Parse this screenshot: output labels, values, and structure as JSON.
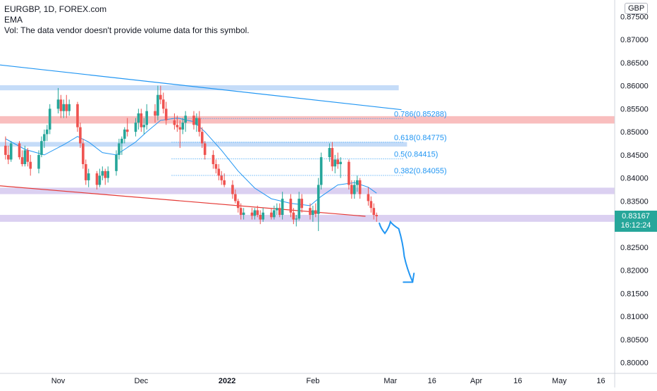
{
  "header": {
    "symbol_line": "EURGBP, 1D, FOREX.com",
    "ema_label": "EMA",
    "vol_label": "Vol: The data vendor doesn't provide volume data for this symbol."
  },
  "price_axis": {
    "currency": "GBP",
    "last_price": "0.83167",
    "countdown": "16:12:24",
    "last_price_value": 0.83167
  },
  "colors": {
    "up": "#26a69a",
    "down": "#ef5350",
    "ema": "#2196f3",
    "zone_blue": "#bbd6f7",
    "zone_red": "#f8b3b3",
    "zone_purple": "#d5c8ee",
    "fib": "#2196f3",
    "trend_blue": "#2196f3",
    "trend_red": "#e53935",
    "arrow": "#2196f3"
  },
  "chart_data": {
    "type": "candlestick",
    "ylim": [
      0.7975,
      0.8775
    ],
    "y_ticks": [
      "0.87500",
      "0.87000",
      "0.86500",
      "0.86000",
      "0.85500",
      "0.85000",
      "0.84500",
      "0.84000",
      "0.83500",
      "0.83000",
      "0.82500",
      "0.82000",
      "0.81500",
      "0.81000",
      "0.80500",
      "0.80000"
    ],
    "x_ticks": [
      {
        "label": "Nov",
        "date": "2021-11-01"
      },
      {
        "label": "Dec",
        "date": "2021-12-01"
      },
      {
        "label": "2022",
        "date": "2022-01-01"
      },
      {
        "label": "Feb",
        "date": "2022-02-01"
      },
      {
        "label": "Mar",
        "date": "2022-03-01"
      },
      {
        "label": "16",
        "date": "2022-03-16"
      },
      {
        "label": "Apr",
        "date": "2022-04-01"
      },
      {
        "label": "16",
        "date": "2022-04-16"
      },
      {
        "label": "May",
        "date": "2022-05-01"
      },
      {
        "label": "16",
        "date": "2022-05-16"
      }
    ],
    "x_range": [
      "2021-10-11",
      "2022-05-21"
    ],
    "candles": [
      {
        "date": "2021-10-13",
        "open": 0.847,
        "high": 0.849,
        "low": 0.844,
        "close": 0.845
      },
      {
        "date": "2021-10-14",
        "open": 0.845,
        "high": 0.847,
        "low": 0.843,
        "close": 0.844
      },
      {
        "date": "2021-10-15",
        "open": 0.844,
        "high": 0.848,
        "low": 0.8435,
        "close": 0.8475
      },
      {
        "date": "2021-10-18",
        "open": 0.8475,
        "high": 0.848,
        "low": 0.844,
        "close": 0.8445
      },
      {
        "date": "2021-10-19",
        "open": 0.8445,
        "high": 0.846,
        "low": 0.8425,
        "close": 0.843
      },
      {
        "date": "2021-10-20",
        "open": 0.843,
        "high": 0.847,
        "low": 0.8425,
        "close": 0.846
      },
      {
        "date": "2021-10-21",
        "open": 0.846,
        "high": 0.8465,
        "low": 0.8425,
        "close": 0.8435
      },
      {
        "date": "2021-10-22",
        "open": 0.8435,
        "high": 0.845,
        "low": 0.8405,
        "close": 0.842
      },
      {
        "date": "2021-10-25",
        "open": 0.842,
        "high": 0.846,
        "low": 0.841,
        "close": 0.845
      },
      {
        "date": "2021-10-26",
        "open": 0.845,
        "high": 0.849,
        "low": 0.8445,
        "close": 0.848
      },
      {
        "date": "2021-10-27",
        "open": 0.848,
        "high": 0.8505,
        "low": 0.8465,
        "close": 0.8495
      },
      {
        "date": "2021-10-28",
        "open": 0.8495,
        "high": 0.8515,
        "low": 0.848,
        "close": 0.8505
      },
      {
        "date": "2021-10-29",
        "open": 0.8505,
        "high": 0.856,
        "low": 0.8495,
        "close": 0.855
      },
      {
        "date": "2021-11-01",
        "open": 0.855,
        "high": 0.8595,
        "low": 0.854,
        "close": 0.857
      },
      {
        "date": "2021-11-02",
        "open": 0.857,
        "high": 0.858,
        "low": 0.853,
        "close": 0.8545
      },
      {
        "date": "2021-11-03",
        "open": 0.8545,
        "high": 0.857,
        "low": 0.853,
        "close": 0.856
      },
      {
        "date": "2021-11-04",
        "open": 0.856,
        "high": 0.858,
        "low": 0.853,
        "close": 0.8545
      },
      {
        "date": "2021-11-05",
        "open": 0.8545,
        "high": 0.857,
        "low": 0.8535,
        "close": 0.856
      },
      {
        "date": "2021-11-08",
        "open": 0.856,
        "high": 0.8565,
        "low": 0.85,
        "close": 0.851
      },
      {
        "date": "2021-11-09",
        "open": 0.851,
        "high": 0.852,
        "low": 0.8465,
        "close": 0.8475
      },
      {
        "date": "2021-11-10",
        "open": 0.8475,
        "high": 0.8485,
        "low": 0.842,
        "close": 0.843
      },
      {
        "date": "2021-11-11",
        "open": 0.843,
        "high": 0.844,
        "low": 0.8385,
        "close": 0.8395
      },
      {
        "date": "2021-11-12",
        "open": 0.8395,
        "high": 0.842,
        "low": 0.838,
        "close": 0.841
      },
      {
        "date": "2021-11-15",
        "open": 0.841,
        "high": 0.8415,
        "low": 0.8375,
        "close": 0.8385
      },
      {
        "date": "2021-11-16",
        "open": 0.8385,
        "high": 0.842,
        "low": 0.838,
        "close": 0.8405
      },
      {
        "date": "2021-11-17",
        "open": 0.8405,
        "high": 0.8425,
        "low": 0.8395,
        "close": 0.8415
      },
      {
        "date": "2021-11-18",
        "open": 0.8415,
        "high": 0.842,
        "low": 0.8385,
        "close": 0.84
      },
      {
        "date": "2021-11-19",
        "open": 0.84,
        "high": 0.8425,
        "low": 0.839,
        "close": 0.8415
      },
      {
        "date": "2021-11-22",
        "open": 0.8415,
        "high": 0.846,
        "low": 0.8405,
        "close": 0.845
      },
      {
        "date": "2021-11-23",
        "open": 0.845,
        "high": 0.8485,
        "low": 0.844,
        "close": 0.8475
      },
      {
        "date": "2021-11-24",
        "open": 0.8475,
        "high": 0.849,
        "low": 0.845,
        "close": 0.8485
      },
      {
        "date": "2021-11-25",
        "open": 0.8485,
        "high": 0.851,
        "low": 0.8475,
        "close": 0.8505
      },
      {
        "date": "2021-11-26",
        "open": 0.8505,
        "high": 0.853,
        "low": 0.849,
        "close": 0.85
      },
      {
        "date": "2021-11-29",
        "open": 0.85,
        "high": 0.853,
        "low": 0.849,
        "close": 0.852
      },
      {
        "date": "2021-11-30",
        "open": 0.852,
        "high": 0.855,
        "low": 0.8505,
        "close": 0.854
      },
      {
        "date": "2021-12-01",
        "open": 0.854,
        "high": 0.855,
        "low": 0.85,
        "close": 0.851
      },
      {
        "date": "2021-12-02",
        "open": 0.851,
        "high": 0.853,
        "low": 0.8495,
        "close": 0.8515
      },
      {
        "date": "2021-12-03",
        "open": 0.8515,
        "high": 0.856,
        "low": 0.8505,
        "close": 0.8545
      },
      {
        "date": "2021-12-06",
        "open": 0.8545,
        "high": 0.856,
        "low": 0.852,
        "close": 0.8535
      },
      {
        "date": "2021-12-07",
        "open": 0.8535,
        "high": 0.86,
        "low": 0.8525,
        "close": 0.858
      },
      {
        "date": "2021-12-08",
        "open": 0.858,
        "high": 0.86,
        "low": 0.856,
        "close": 0.857
      },
      {
        "date": "2021-12-09",
        "open": 0.857,
        "high": 0.8585,
        "low": 0.854,
        "close": 0.855
      },
      {
        "date": "2021-12-10",
        "open": 0.855,
        "high": 0.8565,
        "low": 0.8515,
        "close": 0.8525
      },
      {
        "date": "2021-12-13",
        "open": 0.8525,
        "high": 0.854,
        "low": 0.8505,
        "close": 0.8515
      },
      {
        "date": "2021-12-14",
        "open": 0.8515,
        "high": 0.8535,
        "low": 0.85,
        "close": 0.851
      },
      {
        "date": "2021-12-15",
        "open": 0.851,
        "high": 0.8525,
        "low": 0.8465,
        "close": 0.8505
      },
      {
        "date": "2021-12-16",
        "open": 0.8505,
        "high": 0.853,
        "low": 0.8495,
        "close": 0.852
      },
      {
        "date": "2021-12-17",
        "open": 0.852,
        "high": 0.8545,
        "low": 0.85,
        "close": 0.8535
      },
      {
        "date": "2021-12-20",
        "open": 0.8535,
        "high": 0.8545,
        "low": 0.8505,
        "close": 0.8515
      },
      {
        "date": "2021-12-21",
        "open": 0.8515,
        "high": 0.854,
        "low": 0.85,
        "close": 0.853
      },
      {
        "date": "2021-12-22",
        "open": 0.853,
        "high": 0.8545,
        "low": 0.849,
        "close": 0.85
      },
      {
        "date": "2021-12-23",
        "open": 0.85,
        "high": 0.851,
        "low": 0.8465,
        "close": 0.8475
      },
      {
        "date": "2021-12-24",
        "open": 0.8475,
        "high": 0.848,
        "low": 0.844,
        "close": 0.845
      },
      {
        "date": "2021-12-27",
        "open": 0.845,
        "high": 0.846,
        "low": 0.842,
        "close": 0.843
      },
      {
        "date": "2021-12-28",
        "open": 0.843,
        "high": 0.844,
        "low": 0.841,
        "close": 0.842
      },
      {
        "date": "2021-12-29",
        "open": 0.842,
        "high": 0.843,
        "low": 0.8395,
        "close": 0.8405
      },
      {
        "date": "2021-12-30",
        "open": 0.8405,
        "high": 0.8415,
        "low": 0.8385,
        "close": 0.8395
      },
      {
        "date": "2021-12-31",
        "open": 0.8395,
        "high": 0.841,
        "low": 0.838,
        "close": 0.8385
      },
      {
        "date": "2022-01-03",
        "open": 0.8385,
        "high": 0.8395,
        "low": 0.8355,
        "close": 0.8365
      },
      {
        "date": "2022-01-04",
        "open": 0.8365,
        "high": 0.8375,
        "low": 0.8345,
        "close": 0.835
      },
      {
        "date": "2022-01-05",
        "open": 0.835,
        "high": 0.8355,
        "low": 0.8325,
        "close": 0.8335
      },
      {
        "date": "2022-01-06",
        "open": 0.8335,
        "high": 0.8345,
        "low": 0.831,
        "close": 0.832
      },
      {
        "date": "2022-01-07",
        "open": 0.832,
        "high": 0.8335,
        "low": 0.831,
        "close": 0.8325
      },
      {
        "date": "2022-01-10",
        "open": 0.8325,
        "high": 0.8335,
        "low": 0.831,
        "close": 0.8318
      },
      {
        "date": "2022-01-11",
        "open": 0.8318,
        "high": 0.8335,
        "low": 0.831,
        "close": 0.833
      },
      {
        "date": "2022-01-12",
        "open": 0.833,
        "high": 0.834,
        "low": 0.8315,
        "close": 0.832
      },
      {
        "date": "2022-01-13",
        "open": 0.832,
        "high": 0.833,
        "low": 0.83,
        "close": 0.831
      },
      {
        "date": "2022-01-14",
        "open": 0.831,
        "high": 0.8335,
        "low": 0.8305,
        "close": 0.8325
      },
      {
        "date": "2022-01-17",
        "open": 0.8325,
        "high": 0.8335,
        "low": 0.831,
        "close": 0.8315
      },
      {
        "date": "2022-01-18",
        "open": 0.8315,
        "high": 0.834,
        "low": 0.831,
        "close": 0.833
      },
      {
        "date": "2022-01-19",
        "open": 0.833,
        "high": 0.8345,
        "low": 0.832,
        "close": 0.8335
      },
      {
        "date": "2022-01-20",
        "open": 0.8335,
        "high": 0.8345,
        "low": 0.8315,
        "close": 0.832
      },
      {
        "date": "2022-01-21",
        "open": 0.832,
        "high": 0.837,
        "low": 0.831,
        "close": 0.8355
      },
      {
        "date": "2022-01-24",
        "open": 0.8355,
        "high": 0.8365,
        "low": 0.8315,
        "close": 0.8325
      },
      {
        "date": "2022-01-25",
        "open": 0.8325,
        "high": 0.8335,
        "low": 0.83,
        "close": 0.831
      },
      {
        "date": "2022-01-26",
        "open": 0.831,
        "high": 0.832,
        "low": 0.8295,
        "close": 0.8312
      },
      {
        "date": "2022-01-27",
        "open": 0.8312,
        "high": 0.837,
        "low": 0.8308,
        "close": 0.8355
      },
      {
        "date": "2022-01-28",
        "open": 0.8355,
        "high": 0.8365,
        "low": 0.8325,
        "close": 0.8335
      },
      {
        "date": "2022-01-31",
        "open": 0.8335,
        "high": 0.8345,
        "low": 0.831,
        "close": 0.832
      },
      {
        "date": "2022-02-01",
        "open": 0.832,
        "high": 0.834,
        "low": 0.8305,
        "close": 0.833
      },
      {
        "date": "2022-02-02",
        "open": 0.833,
        "high": 0.8345,
        "low": 0.8315,
        "close": 0.8322
      },
      {
        "date": "2022-02-03",
        "open": 0.8322,
        "high": 0.84,
        "low": 0.8285,
        "close": 0.8385
      },
      {
        "date": "2022-02-04",
        "open": 0.8385,
        "high": 0.8455,
        "low": 0.8375,
        "close": 0.8445
      },
      {
        "date": "2022-02-07",
        "open": 0.8445,
        "high": 0.8475,
        "low": 0.8435,
        "close": 0.8465
      },
      {
        "date": "2022-02-08",
        "open": 0.8465,
        "high": 0.8478,
        "low": 0.8415,
        "close": 0.8425
      },
      {
        "date": "2022-02-09",
        "open": 0.8425,
        "high": 0.845,
        "low": 0.841,
        "close": 0.844
      },
      {
        "date": "2022-02-10",
        "open": 0.844,
        "high": 0.8455,
        "low": 0.842,
        "close": 0.843
      },
      {
        "date": "2022-02-11",
        "open": 0.843,
        "high": 0.8445,
        "low": 0.84,
        "close": 0.8435
      },
      {
        "date": "2022-02-14",
        "open": 0.8435,
        "high": 0.844,
        "low": 0.8375,
        "close": 0.8385
      },
      {
        "date": "2022-02-15",
        "open": 0.8385,
        "high": 0.8395,
        "low": 0.8355,
        "close": 0.8365
      },
      {
        "date": "2022-02-16",
        "open": 0.8365,
        "high": 0.8395,
        "low": 0.8355,
        "close": 0.8385
      },
      {
        "date": "2022-02-17",
        "open": 0.8385,
        "high": 0.8405,
        "low": 0.837,
        "close": 0.8395
      },
      {
        "date": "2022-02-18",
        "open": 0.8395,
        "high": 0.84,
        "low": 0.8355,
        "close": 0.8365
      },
      {
        "date": "2022-02-21",
        "open": 0.8365,
        "high": 0.838,
        "low": 0.834,
        "close": 0.835
      },
      {
        "date": "2022-02-22",
        "open": 0.835,
        "high": 0.836,
        "low": 0.8325,
        "close": 0.8335
      },
      {
        "date": "2022-02-23",
        "open": 0.8335,
        "high": 0.8345,
        "low": 0.831,
        "close": 0.832
      },
      {
        "date": "2022-02-24",
        "open": 0.832,
        "high": 0.8325,
        "low": 0.8305,
        "close": 0.8317
      }
    ],
    "ema": [
      {
        "date": "2021-10-13",
        "value": 0.8485
      },
      {
        "date": "2021-10-20",
        "value": 0.8462
      },
      {
        "date": "2021-10-27",
        "value": 0.845
      },
      {
        "date": "2021-11-03",
        "value": 0.8472
      },
      {
        "date": "2021-11-08",
        "value": 0.849
      },
      {
        "date": "2021-11-12",
        "value": 0.8478
      },
      {
        "date": "2021-11-17",
        "value": 0.8455
      },
      {
        "date": "2021-11-22",
        "value": 0.845
      },
      {
        "date": "2021-11-29",
        "value": 0.8478
      },
      {
        "date": "2021-12-03",
        "value": 0.85
      },
      {
        "date": "2021-12-08",
        "value": 0.8525
      },
      {
        "date": "2021-12-14",
        "value": 0.853
      },
      {
        "date": "2021-12-20",
        "value": 0.8522
      },
      {
        "date": "2021-12-24",
        "value": 0.85
      },
      {
        "date": "2021-12-30",
        "value": 0.846
      },
      {
        "date": "2022-01-05",
        "value": 0.8415
      },
      {
        "date": "2022-01-11",
        "value": 0.8378
      },
      {
        "date": "2022-01-17",
        "value": 0.8355
      },
      {
        "date": "2022-01-24",
        "value": 0.8345
      },
      {
        "date": "2022-01-31",
        "value": 0.834
      },
      {
        "date": "2022-02-04",
        "value": 0.836
      },
      {
        "date": "2022-02-10",
        "value": 0.8385
      },
      {
        "date": "2022-02-16",
        "value": 0.839
      },
      {
        "date": "2022-02-21",
        "value": 0.838
      },
      {
        "date": "2022-02-24",
        "value": 0.8367
      }
    ],
    "zones": [
      {
        "name": "zone-blue-top",
        "color": "zone_blue",
        "y1": 0.8601,
        "y2": 0.859,
        "x1": "2021-10-11",
        "x2": "2022-03-04"
      },
      {
        "name": "zone-red",
        "color": "zone_red",
        "y1": 0.8534,
        "y2": 0.8518,
        "x1": "2021-10-11",
        "x2": "2022-05-21"
      },
      {
        "name": "zone-blue-mid",
        "color": "zone_blue",
        "y1": 0.8478,
        "y2": 0.8468,
        "x1": "2021-10-11",
        "x2": "2022-03-07"
      },
      {
        "name": "zone-purple-upper",
        "color": "zone_purple",
        "y1": 0.8379,
        "y2": 0.8365,
        "x1": "2021-10-11",
        "x2": "2022-05-21"
      },
      {
        "name": "zone-purple-lower",
        "color": "zone_purple",
        "y1": 0.832,
        "y2": 0.8305,
        "x1": "2021-10-11",
        "x2": "2022-05-21"
      }
    ],
    "legend_highlight": {
      "name": "vol-highlight",
      "color": "zone_purple"
    },
    "fib_levels": [
      {
        "label": "0.786(0.85288)",
        "value": 0.85288
      },
      {
        "label": "0.618(0.84775)",
        "value": 0.84775
      },
      {
        "label": "0.5(0.84415)",
        "value": 0.84415
      },
      {
        "label": "0.382(0.84055)",
        "value": 0.84055
      }
    ],
    "fib_x_range": [
      "2021-12-12",
      "2022-03-06"
    ],
    "trend_lines": [
      {
        "name": "blue-trendline",
        "color": "trend_blue",
        "x1": "2021-10-11",
        "y1": 0.8645,
        "x2": "2022-03-05",
        "y2": 0.8548
      },
      {
        "name": "red-trendline",
        "color": "trend_red",
        "x1": "2021-10-11",
        "y1": 0.8383,
        "x2": "2022-02-20",
        "y2": 0.8317
      }
    ],
    "projection_arrow": {
      "points": [
        {
          "date": "2022-02-25",
          "value": 0.8302
        },
        {
          "date": "2022-02-27",
          "value": 0.828
        },
        {
          "date": "2022-03-01",
          "value": 0.8305
        },
        {
          "date": "2022-03-04",
          "value": 0.829
        },
        {
          "date": "2022-03-06",
          "value": 0.823
        },
        {
          "date": "2022-03-09",
          "value": 0.8175
        }
      ]
    }
  }
}
